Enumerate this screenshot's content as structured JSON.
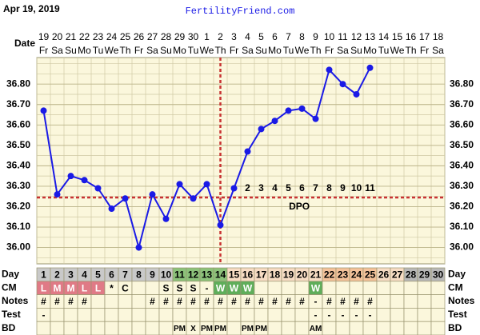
{
  "chart_data": {
    "type": "line",
    "title": "Apr 19, 2019",
    "site": "FertilityFriend.com",
    "date_label": "Date",
    "categories": [
      "19",
      "20",
      "21",
      "22",
      "23",
      "24",
      "25",
      "26",
      "27",
      "28",
      "29",
      "30",
      "1",
      "2",
      "3",
      "4",
      "5",
      "6",
      "7",
      "8",
      "9",
      "10",
      "11",
      "12",
      "13",
      "14",
      "15",
      "16",
      "17",
      "18"
    ],
    "weekdays": [
      "Fr",
      "Sa",
      "Su",
      "Mo",
      "Tu",
      "We",
      "Th",
      "Fr",
      "Sa",
      "Su",
      "Mo",
      "Tu",
      "We",
      "Th",
      "Fr",
      "Sa",
      "Su",
      "Mo",
      "Tu",
      "We",
      "Th",
      "Fr",
      "Sa",
      "Su",
      "Mo",
      "Tu",
      "We",
      "Th",
      "Fr",
      "Sa"
    ],
    "color": "#1a1ae6",
    "values": [
      36.67,
      36.26,
      36.35,
      36.33,
      36.29,
      36.19,
      36.24,
      36.0,
      36.26,
      36.14,
      36.31,
      36.24,
      36.31,
      36.11,
      36.29,
      36.47,
      36.58,
      36.62,
      36.67,
      36.68,
      36.63,
      36.87,
      36.8,
      36.75,
      36.88,
      null,
      null,
      null,
      null,
      null
    ],
    "ylim": [
      35.92,
      36.93
    ],
    "yticks": [
      {
        "value": 36.0,
        "label": "36.00"
      },
      {
        "value": 36.1,
        "label": "36.10"
      },
      {
        "value": 36.2,
        "label": "36.20"
      },
      {
        "value": 36.3,
        "label": "36.30"
      },
      {
        "value": 36.4,
        "label": "36.40"
      },
      {
        "value": 36.5,
        "label": "36.50"
      },
      {
        "value": 36.6,
        "label": "36.60"
      },
      {
        "value": 36.7,
        "label": "36.70"
      },
      {
        "value": 36.8,
        "label": "36.80"
      }
    ],
    "coverline": 36.245,
    "ovulation_day": 14,
    "dpo_label": "DPO",
    "dpo": [
      null,
      null,
      null,
      null,
      null,
      null,
      null,
      null,
      null,
      null,
      null,
      null,
      null,
      null,
      null,
      2,
      3,
      4,
      5,
      6,
      7,
      8,
      9,
      10,
      11,
      null,
      null,
      null,
      null,
      null
    ],
    "rows": [
      {
        "label": "Day",
        "cells": [
          1,
          2,
          3,
          4,
          5,
          6,
          7,
          8,
          9,
          10,
          11,
          12,
          13,
          14,
          15,
          16,
          17,
          18,
          19,
          20,
          21,
          22,
          23,
          24,
          25,
          26,
          27,
          28,
          29,
          30
        ]
      },
      {
        "label": "CM",
        "cells": [
          "L",
          "M",
          "M",
          "L",
          "L",
          "*",
          "C",
          null,
          null,
          "S",
          "S",
          "S",
          "-",
          "W",
          "W",
          "W",
          null,
          null,
          null,
          null,
          "W",
          null,
          null,
          null,
          null,
          null,
          null,
          null,
          null,
          null
        ]
      },
      {
        "label": "Notes",
        "cells": [
          "#",
          "#",
          "#",
          "#",
          null,
          null,
          null,
          null,
          "#",
          "#",
          "#",
          "#",
          "#",
          "#",
          "#",
          "#",
          "#",
          "#",
          "#",
          "#",
          "-",
          "#",
          "#",
          "#",
          "#",
          null,
          null,
          null,
          null,
          null
        ]
      },
      {
        "label": "Test",
        "cells": [
          "-",
          null,
          null,
          null,
          null,
          null,
          null,
          null,
          null,
          null,
          null,
          null,
          null,
          null,
          null,
          null,
          null,
          null,
          null,
          null,
          "-",
          "-",
          "-",
          "-",
          "-",
          null,
          null,
          null,
          null,
          null
        ]
      },
      {
        "label": "BD",
        "cells": [
          null,
          null,
          null,
          null,
          null,
          null,
          null,
          null,
          null,
          null,
          "PM",
          "X",
          "PM",
          "PM",
          null,
          "PM",
          "PM",
          null,
          null,
          null,
          "AM",
          null,
          null,
          null,
          null,
          null,
          null,
          null,
          null,
          null
        ]
      }
    ]
  }
}
